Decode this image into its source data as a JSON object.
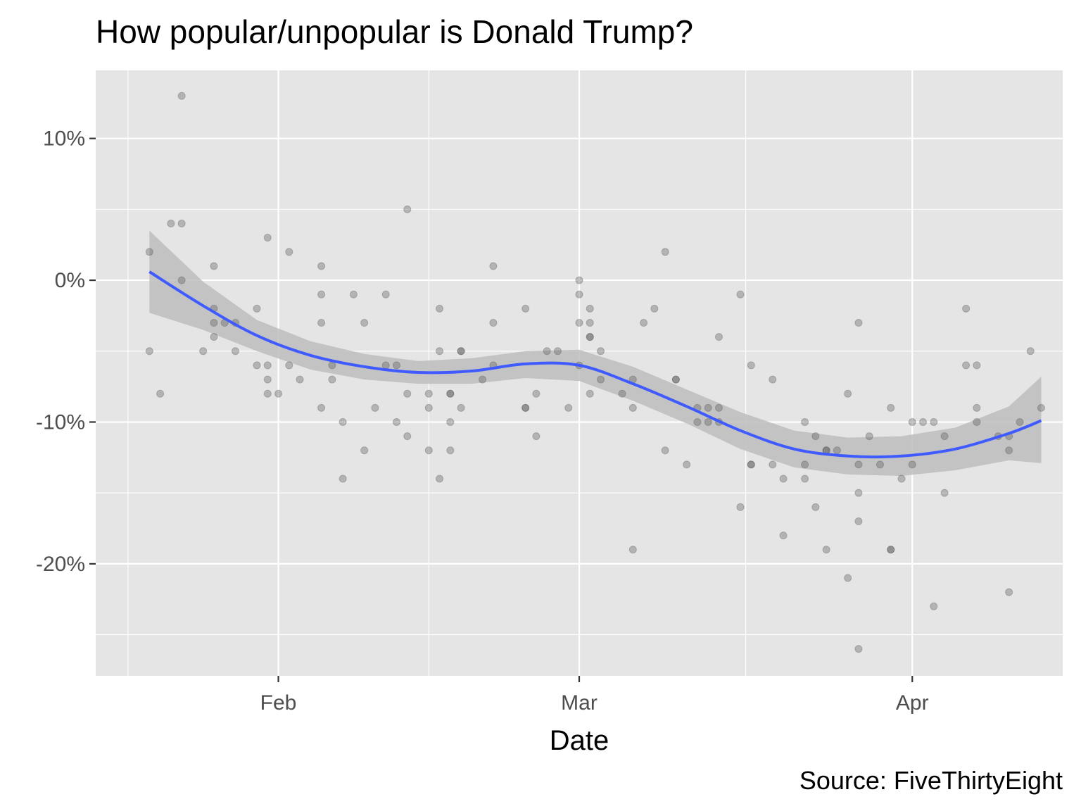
{
  "chart_data": {
    "type": "scatter",
    "title": "How popular/unpopular is Donald Trump?",
    "xlabel": "Date",
    "ylabel": "",
    "caption": "Source: FiveThirtyEight",
    "x_ticks": [
      {
        "date": "2017-02-01",
        "label": "Feb"
      },
      {
        "date": "2017-03-01",
        "label": "Mar"
      },
      {
        "date": "2017-04-01",
        "label": "Apr"
      }
    ],
    "y_ticks": [
      {
        "value": 10,
        "label": "10%"
      },
      {
        "value": 0,
        "label": "0%"
      },
      {
        "value": -10,
        "label": "-10%"
      },
      {
        "value": -20,
        "label": "-20%"
      }
    ],
    "xlim": [
      "2017-01-15",
      "2017-04-15"
    ],
    "ylim": [
      -27.9,
      14.8
    ],
    "grid": true,
    "colors": {
      "panel": "#e5e5e5",
      "grid": "#ffffff",
      "points": "#555555",
      "smooth_line": "#3f5bff",
      "ribbon": "#bdbdbd",
      "ticks": "#4d4d4d"
    },
    "points": [
      {
        "x": "2017-01-20",
        "y": 2
      },
      {
        "x": "2017-01-20",
        "y": -5
      },
      {
        "x": "2017-01-21",
        "y": -8
      },
      {
        "x": "2017-01-22",
        "y": 4
      },
      {
        "x": "2017-01-23",
        "y": 4
      },
      {
        "x": "2017-01-23",
        "y": 0
      },
      {
        "x": "2017-01-23",
        "y": 13
      },
      {
        "x": "2017-01-25",
        "y": -5
      },
      {
        "x": "2017-01-26",
        "y": 1
      },
      {
        "x": "2017-01-26",
        "y": -2
      },
      {
        "x": "2017-01-26",
        "y": -3
      },
      {
        "x": "2017-01-26",
        "y": -4
      },
      {
        "x": "2017-01-27",
        "y": -3
      },
      {
        "x": "2017-01-28",
        "y": -3
      },
      {
        "x": "2017-01-28",
        "y": -5
      },
      {
        "x": "2017-01-30",
        "y": -2
      },
      {
        "x": "2017-01-30",
        "y": -6
      },
      {
        "x": "2017-01-31",
        "y": -6
      },
      {
        "x": "2017-01-31",
        "y": -7
      },
      {
        "x": "2017-01-31",
        "y": -8
      },
      {
        "x": "2017-01-31",
        "y": 3
      },
      {
        "x": "2017-02-01",
        "y": -8
      },
      {
        "x": "2017-02-02",
        "y": 2
      },
      {
        "x": "2017-02-02",
        "y": -6
      },
      {
        "x": "2017-02-03",
        "y": -7
      },
      {
        "x": "2017-02-05",
        "y": 1
      },
      {
        "x": "2017-02-05",
        "y": -1
      },
      {
        "x": "2017-02-05",
        "y": -3
      },
      {
        "x": "2017-02-05",
        "y": -9
      },
      {
        "x": "2017-02-06",
        "y": -6
      },
      {
        "x": "2017-02-06",
        "y": -7
      },
      {
        "x": "2017-02-07",
        "y": -10
      },
      {
        "x": "2017-02-07",
        "y": -14
      },
      {
        "x": "2017-02-08",
        "y": -1
      },
      {
        "x": "2017-02-09",
        "y": -3
      },
      {
        "x": "2017-02-09",
        "y": -12
      },
      {
        "x": "2017-02-10",
        "y": -9
      },
      {
        "x": "2017-02-11",
        "y": -1
      },
      {
        "x": "2017-02-11",
        "y": -6
      },
      {
        "x": "2017-02-12",
        "y": -6
      },
      {
        "x": "2017-02-12",
        "y": -10
      },
      {
        "x": "2017-02-13",
        "y": 5
      },
      {
        "x": "2017-02-13",
        "y": -8
      },
      {
        "x": "2017-02-13",
        "y": -11
      },
      {
        "x": "2017-02-15",
        "y": -8
      },
      {
        "x": "2017-02-15",
        "y": -9
      },
      {
        "x": "2017-02-15",
        "y": -12
      },
      {
        "x": "2017-02-16",
        "y": -2
      },
      {
        "x": "2017-02-16",
        "y": -5
      },
      {
        "x": "2017-02-16",
        "y": -14
      },
      {
        "x": "2017-02-17",
        "y": -8
      },
      {
        "x": "2017-02-17",
        "y": -8
      },
      {
        "x": "2017-02-17",
        "y": -10
      },
      {
        "x": "2017-02-17",
        "y": -12
      },
      {
        "x": "2017-02-18",
        "y": -5
      },
      {
        "x": "2017-02-18",
        "y": -5
      },
      {
        "x": "2017-02-18",
        "y": -9
      },
      {
        "x": "2017-02-20",
        "y": -7
      },
      {
        "x": "2017-02-21",
        "y": 1
      },
      {
        "x": "2017-02-21",
        "y": -3
      },
      {
        "x": "2017-02-21",
        "y": -6
      },
      {
        "x": "2017-02-24",
        "y": -2
      },
      {
        "x": "2017-02-24",
        "y": -9
      },
      {
        "x": "2017-02-24",
        "y": -9
      },
      {
        "x": "2017-02-25",
        "y": -8
      },
      {
        "x": "2017-02-25",
        "y": -11
      },
      {
        "x": "2017-02-26",
        "y": -5
      },
      {
        "x": "2017-02-27",
        "y": -5
      },
      {
        "x": "2017-02-28",
        "y": -9
      },
      {
        "x": "2017-03-01",
        "y": 0
      },
      {
        "x": "2017-03-01",
        "y": -1
      },
      {
        "x": "2017-03-01",
        "y": -3
      },
      {
        "x": "2017-03-01",
        "y": -6
      },
      {
        "x": "2017-03-02",
        "y": -2
      },
      {
        "x": "2017-03-02",
        "y": -3
      },
      {
        "x": "2017-03-02",
        "y": -4
      },
      {
        "x": "2017-03-02",
        "y": -4
      },
      {
        "x": "2017-03-02",
        "y": -8
      },
      {
        "x": "2017-03-03",
        "y": -5
      },
      {
        "x": "2017-03-03",
        "y": -7
      },
      {
        "x": "2017-03-05",
        "y": -8
      },
      {
        "x": "2017-03-06",
        "y": -7
      },
      {
        "x": "2017-03-06",
        "y": -9
      },
      {
        "x": "2017-03-06",
        "y": -19
      },
      {
        "x": "2017-03-07",
        "y": -3
      },
      {
        "x": "2017-03-08",
        "y": -2
      },
      {
        "x": "2017-03-09",
        "y": 2
      },
      {
        "x": "2017-03-09",
        "y": -12
      },
      {
        "x": "2017-03-10",
        "y": -7
      },
      {
        "x": "2017-03-10",
        "y": -7
      },
      {
        "x": "2017-03-11",
        "y": -13
      },
      {
        "x": "2017-03-12",
        "y": -9
      },
      {
        "x": "2017-03-12",
        "y": -10
      },
      {
        "x": "2017-03-13",
        "y": -9
      },
      {
        "x": "2017-03-13",
        "y": -10
      },
      {
        "x": "2017-03-14",
        "y": -4
      },
      {
        "x": "2017-03-14",
        "y": -9
      },
      {
        "x": "2017-03-14",
        "y": -10
      },
      {
        "x": "2017-03-16",
        "y": -1
      },
      {
        "x": "2017-03-16",
        "y": -16
      },
      {
        "x": "2017-03-17",
        "y": -6
      },
      {
        "x": "2017-03-17",
        "y": -13
      },
      {
        "x": "2017-03-17",
        "y": -13
      },
      {
        "x": "2017-03-19",
        "y": -7
      },
      {
        "x": "2017-03-19",
        "y": -13
      },
      {
        "x": "2017-03-20",
        "y": -14
      },
      {
        "x": "2017-03-20",
        "y": -18
      },
      {
        "x": "2017-03-22",
        "y": -10
      },
      {
        "x": "2017-03-22",
        "y": -13
      },
      {
        "x": "2017-03-22",
        "y": -14
      },
      {
        "x": "2017-03-23",
        "y": -11
      },
      {
        "x": "2017-03-23",
        "y": -16
      },
      {
        "x": "2017-03-24",
        "y": -12
      },
      {
        "x": "2017-03-24",
        "y": -12
      },
      {
        "x": "2017-03-24",
        "y": -19
      },
      {
        "x": "2017-03-25",
        "y": -12
      },
      {
        "x": "2017-03-26",
        "y": -8
      },
      {
        "x": "2017-03-26",
        "y": -21
      },
      {
        "x": "2017-03-27",
        "y": -3
      },
      {
        "x": "2017-03-27",
        "y": -13
      },
      {
        "x": "2017-03-27",
        "y": -15
      },
      {
        "x": "2017-03-27",
        "y": -17
      },
      {
        "x": "2017-03-27",
        "y": -26
      },
      {
        "x": "2017-03-28",
        "y": -11
      },
      {
        "x": "2017-03-29",
        "y": -13
      },
      {
        "x": "2017-03-30",
        "y": -9
      },
      {
        "x": "2017-03-30",
        "y": -19
      },
      {
        "x": "2017-03-30",
        "y": -19
      },
      {
        "x": "2017-03-31",
        "y": -14
      },
      {
        "x": "2017-04-01",
        "y": -10
      },
      {
        "x": "2017-04-01",
        "y": -13
      },
      {
        "x": "2017-04-02",
        "y": -10
      },
      {
        "x": "2017-04-03",
        "y": -10
      },
      {
        "x": "2017-04-03",
        "y": -23
      },
      {
        "x": "2017-04-04",
        "y": -11
      },
      {
        "x": "2017-04-04",
        "y": -15
      },
      {
        "x": "2017-04-06",
        "y": -2
      },
      {
        "x": "2017-04-06",
        "y": -6
      },
      {
        "x": "2017-04-07",
        "y": -6
      },
      {
        "x": "2017-04-07",
        "y": -9
      },
      {
        "x": "2017-04-07",
        "y": -10
      },
      {
        "x": "2017-04-09",
        "y": -11
      },
      {
        "x": "2017-04-10",
        "y": -11
      },
      {
        "x": "2017-04-10",
        "y": -12
      },
      {
        "x": "2017-04-10",
        "y": -22
      },
      {
        "x": "2017-04-11",
        "y": -10
      },
      {
        "x": "2017-04-12",
        "y": -5
      },
      {
        "x": "2017-04-13",
        "y": -9
      }
    ],
    "smooth": {
      "x": [
        "2017-01-20",
        "2017-01-25",
        "2017-01-30",
        "2017-02-04",
        "2017-02-09",
        "2017-02-14",
        "2017-02-19",
        "2017-02-24",
        "2017-03-01",
        "2017-03-06",
        "2017-03-11",
        "2017-03-16",
        "2017-03-21",
        "2017-03-26",
        "2017-03-31",
        "2017-04-05",
        "2017-04-10",
        "2017-04-13"
      ],
      "y": [
        0.6,
        -1.8,
        -3.9,
        -5.3,
        -6.1,
        -6.5,
        -6.4,
        -5.9,
        -6.0,
        -7.3,
        -8.9,
        -10.6,
        -11.9,
        -12.4,
        -12.4,
        -11.9,
        -10.8,
        -9.9
      ],
      "lower": [
        -2.3,
        -3.5,
        -5.0,
        -6.3,
        -7.0,
        -7.3,
        -7.3,
        -6.9,
        -7.1,
        -8.5,
        -10.1,
        -11.9,
        -13.2,
        -13.7,
        -13.8,
        -13.4,
        -12.7,
        -12.9
      ],
      "upper": [
        3.5,
        -0.1,
        -2.8,
        -4.3,
        -5.2,
        -5.7,
        -5.5,
        -5.0,
        -4.9,
        -6.1,
        -7.7,
        -9.3,
        -10.6,
        -11.1,
        -11.0,
        -10.4,
        -8.9,
        -6.8
      ]
    }
  }
}
